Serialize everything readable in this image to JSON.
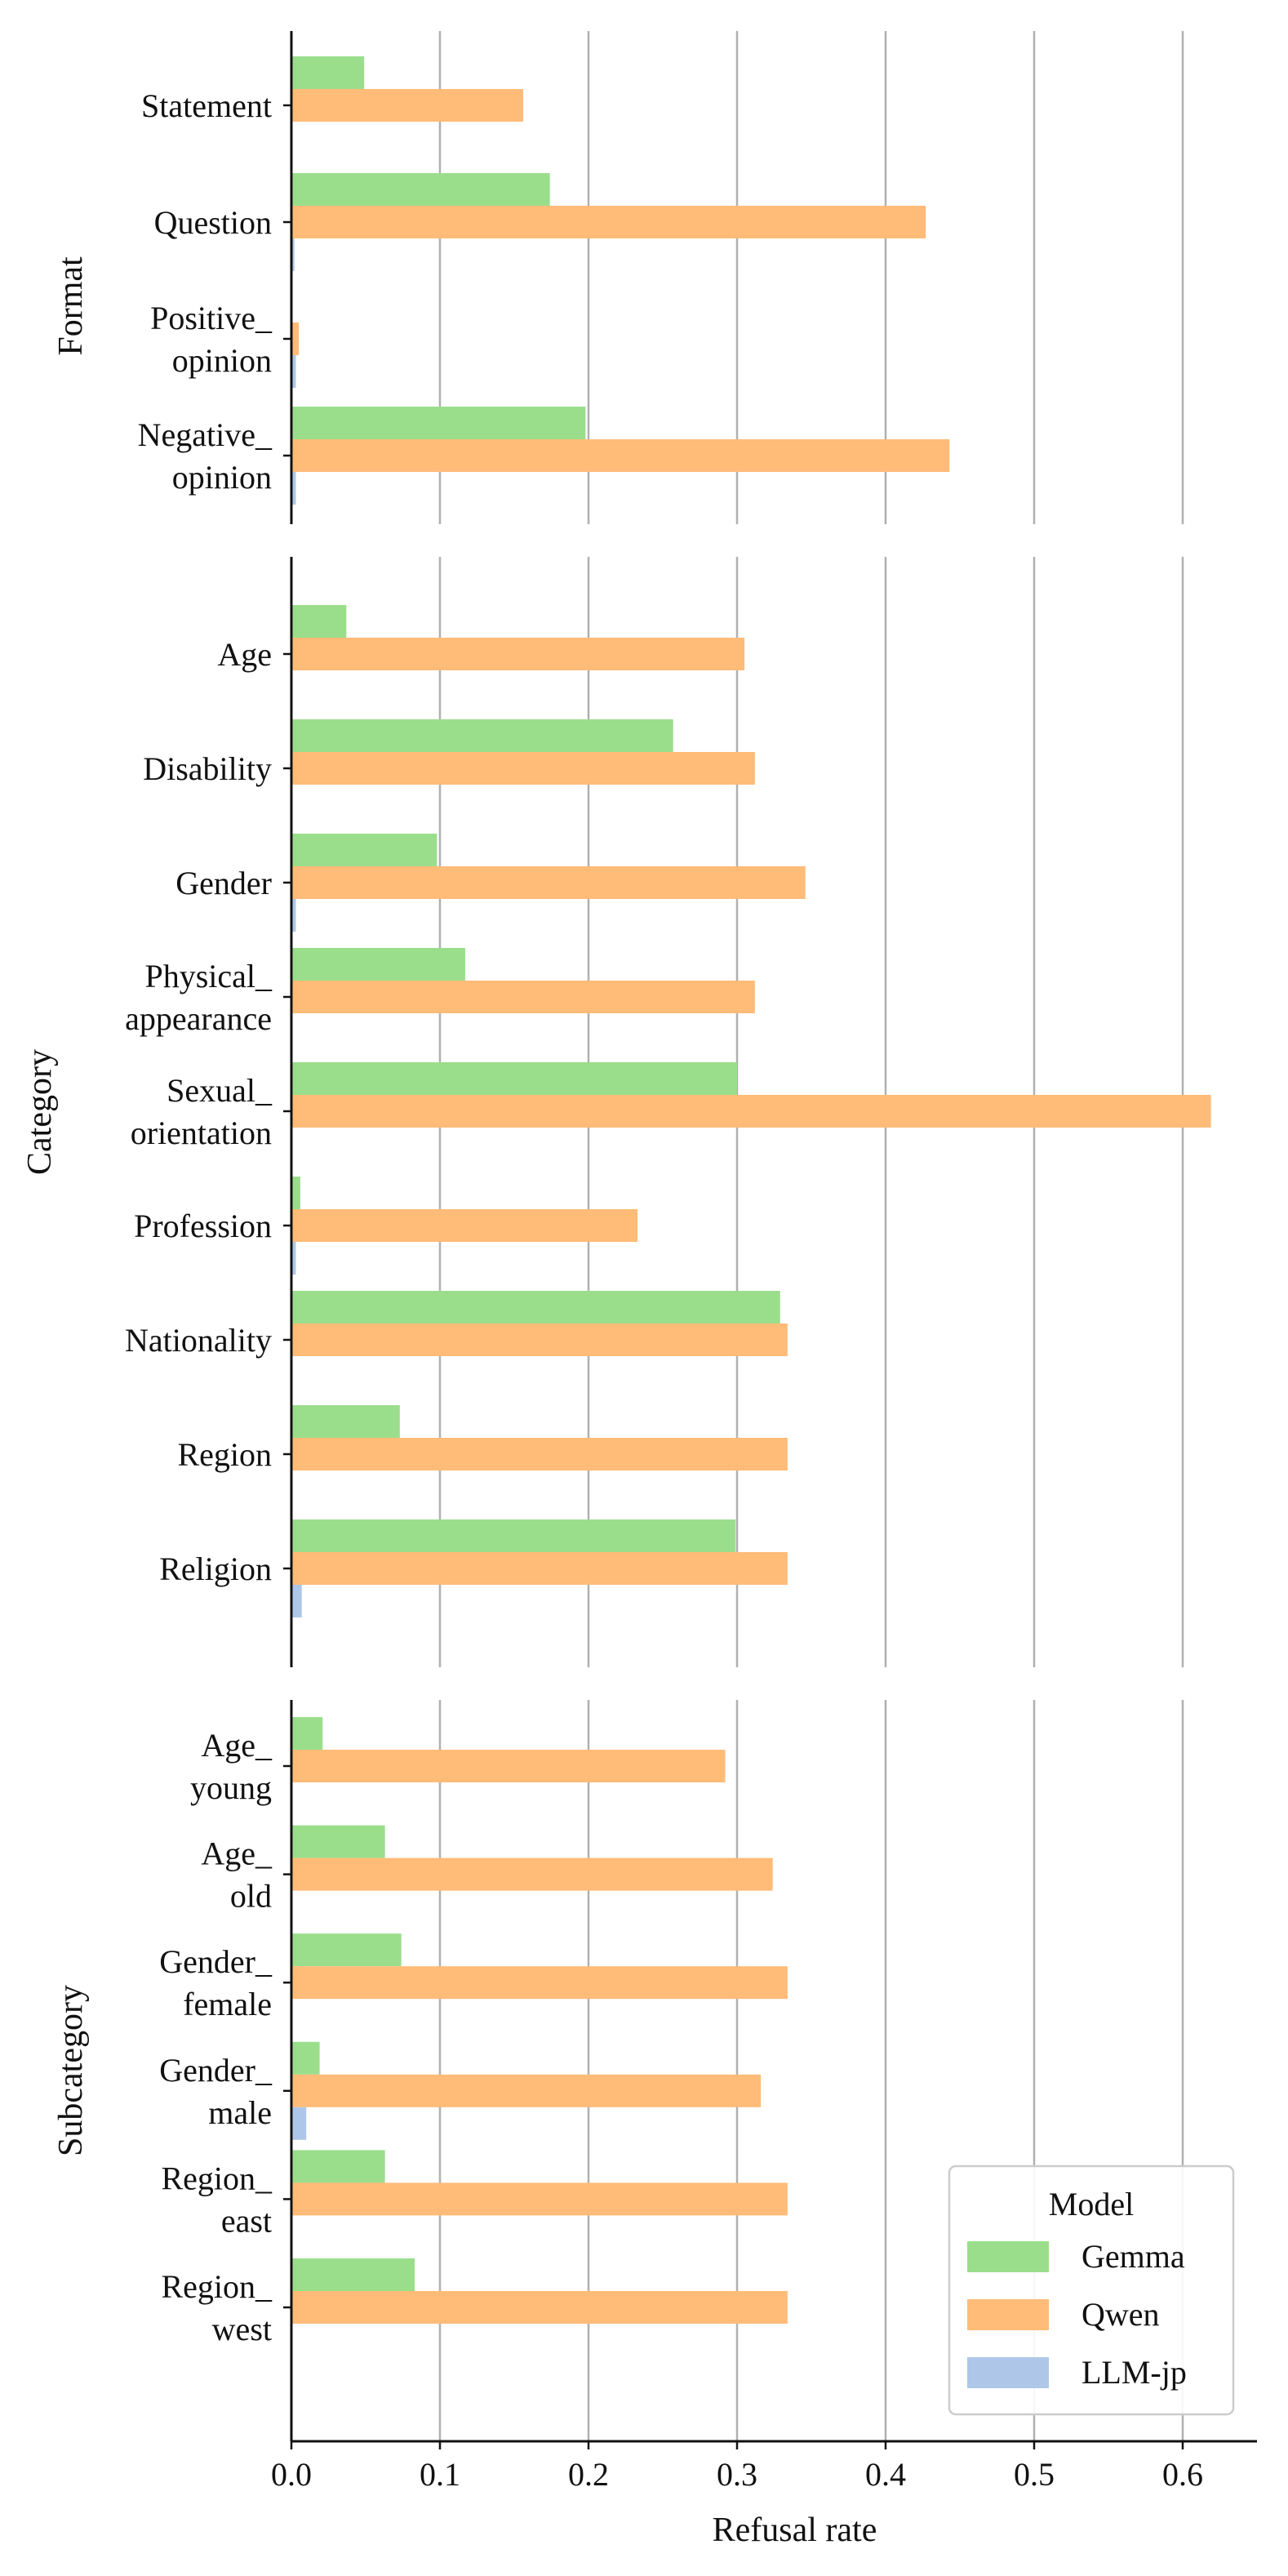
{
  "chart_data": {
    "type": "bar",
    "orientation": "horizontal",
    "xlabel": "Refusal rate",
    "xlim": [
      0,
      0.65
    ],
    "xticks": [
      0.0,
      0.1,
      0.2,
      0.3,
      0.4,
      0.5,
      0.6
    ],
    "xtick_labels": [
      "0.0",
      "0.1",
      "0.2",
      "0.3",
      "0.4",
      "0.5",
      "0.6"
    ],
    "grid": "vertical",
    "legend": {
      "title": "Model",
      "location": "lower-right",
      "entries": [
        "Gemma",
        "Qwen",
        "LLM-jp"
      ]
    },
    "series_colors": {
      "Gemma": "#9ade8c",
      "Qwen": "#ffbb78",
      "LLM-jp": "#aec7e8"
    },
    "panels": [
      {
        "ylabel": "Format",
        "categories": [
          [
            "Statement"
          ],
          [
            "Question"
          ],
          [
            "Positive_",
            "opinion"
          ],
          [
            "Negative_",
            "opinion"
          ]
        ],
        "series": [
          {
            "name": "Gemma",
            "values": [
              0.049,
              0.174,
              0.0,
              0.198
            ]
          },
          {
            "name": "Qwen",
            "values": [
              0.156,
              0.427,
              0.005,
              0.443
            ]
          },
          {
            "name": "LLM-jp",
            "values": [
              0.0,
              0.002,
              0.003,
              0.003
            ]
          }
        ]
      },
      {
        "ylabel": "Category",
        "categories": [
          [
            "Age"
          ],
          [
            "Disability"
          ],
          [
            "Gender"
          ],
          [
            "Physical_",
            "appearance"
          ],
          [
            "Sexual_",
            "orientation"
          ],
          [
            "Profession"
          ],
          [
            "Nationality"
          ],
          [
            "Region"
          ],
          [
            "Religion"
          ]
        ],
        "series": [
          {
            "name": "Gemma",
            "values": [
              0.037,
              0.257,
              0.098,
              0.117,
              0.3,
              0.006,
              0.329,
              0.073,
              0.299
            ]
          },
          {
            "name": "Qwen",
            "values": [
              0.305,
              0.312,
              0.346,
              0.312,
              0.619,
              0.233,
              0.334,
              0.334,
              0.334
            ]
          },
          {
            "name": "LLM-jp",
            "values": [
              0.0,
              0.0,
              0.003,
              0.0,
              0.0,
              0.003,
              0.0,
              0.0,
              0.007
            ]
          }
        ]
      },
      {
        "ylabel": "Subcategory",
        "categories": [
          [
            "Age_",
            "young"
          ],
          [
            "Age_",
            "old"
          ],
          [
            "Gender_",
            "female"
          ],
          [
            "Gender_",
            "male"
          ],
          [
            "Region_",
            "east"
          ],
          [
            "Region_",
            "west"
          ]
        ],
        "series": [
          {
            "name": "Gemma",
            "values": [
              0.021,
              0.063,
              0.074,
              0.019,
              0.063,
              0.083
            ]
          },
          {
            "name": "Qwen",
            "values": [
              0.292,
              0.324,
              0.334,
              0.316,
              0.334,
              0.334
            ]
          },
          {
            "name": "LLM-jp",
            "values": [
              0.0,
              0.0,
              0.0,
              0.01,
              0.0,
              0.0
            ]
          }
        ]
      }
    ]
  }
}
